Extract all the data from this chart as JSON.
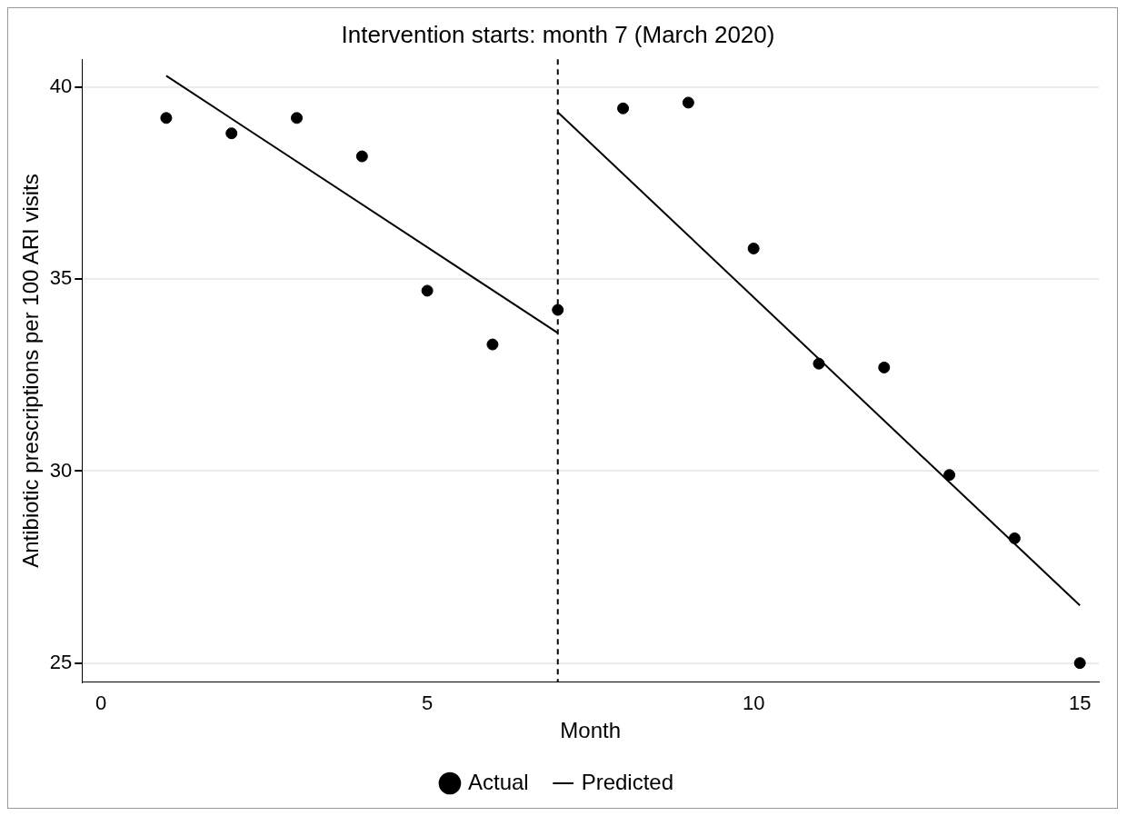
{
  "chart_data": {
    "type": "scatter",
    "title": "Intervention starts: month 7 (March 2020)",
    "xlabel": "Month",
    "ylabel": "Antibiotic prescriptions per 100 ARI visits",
    "x": [
      1,
      2,
      3,
      4,
      5,
      6,
      7,
      8,
      9,
      10,
      11,
      12,
      13,
      14,
      15
    ],
    "series": [
      {
        "name": "Actual",
        "color": "#000000",
        "marker": "circle",
        "values": [
          39.2,
          38.8,
          39.2,
          38.2,
          34.7,
          33.3,
          34.2,
          39.45,
          39.6,
          35.8,
          32.8,
          32.7,
          29.9,
          28.25,
          25.0
        ]
      },
      {
        "name": "Predicted",
        "type": "line",
        "color": "#000000",
        "marker": "none",
        "line_style": "solid",
        "x": [
          1,
          7
        ],
        "values": [
          40.3,
          33.6
        ]
      },
      {
        "type": "line",
        "color": "#000000",
        "marker": "none",
        "line_style": "solid",
        "x": [
          7,
          15
        ],
        "values": [
          39.35,
          26.5
        ]
      }
    ],
    "xlim": [
      -0.29,
      15.29
    ],
    "xticks": [
      0,
      5,
      10,
      15
    ],
    "ylim": [
      24.5,
      40.73
    ],
    "yticks": [
      25,
      30,
      35,
      40
    ],
    "grid": "y",
    "legend": "bottom",
    "ref_lines": [
      {
        "axis": "x",
        "value": 7,
        "line_style": "dashed",
        "color": "#000000"
      }
    ]
  }
}
